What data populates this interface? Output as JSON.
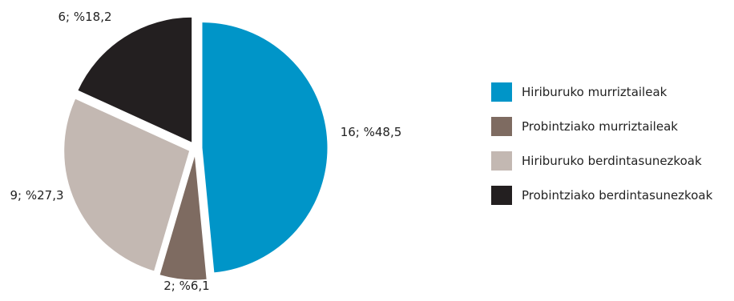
{
  "chart_data": {
    "type": "pie",
    "title": "",
    "slices": [
      {
        "name": "Hiriburuko murriztaileak",
        "count": 16,
        "percent": 48.5,
        "label": "16; %48,5",
        "color": "#0095c8"
      },
      {
        "name": "Probintziako murriztaileak",
        "count": 2,
        "percent": 6.1,
        "label": "2; %6,1",
        "color": "#7e6b61"
      },
      {
        "name": "Hiriburuko berdintasunezkoak",
        "count": 9,
        "percent": 27.3,
        "label": "9; %27,3",
        "color": "#c3b8b2"
      },
      {
        "name": "Probintziako berdintasunezkoak",
        "count": 6,
        "percent": 18.2,
        "label": "6; %18,2",
        "color": "#231f20"
      }
    ],
    "legend": {
      "placement": "right"
    }
  }
}
